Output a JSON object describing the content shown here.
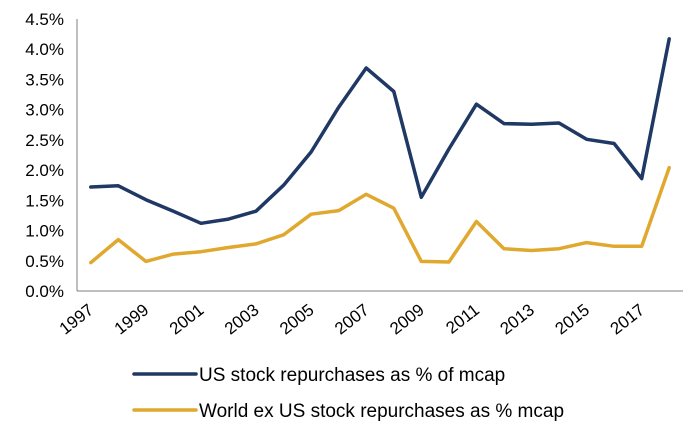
{
  "chart_data": {
    "type": "line",
    "x": [
      1997,
      1998,
      1999,
      2000,
      2001,
      2002,
      2003,
      2004,
      2005,
      2006,
      2007,
      2008,
      2009,
      2010,
      2011,
      2012,
      2013,
      2014,
      2015,
      2016,
      2017,
      2018
    ],
    "x_tick_labels": [
      "1997",
      "1999",
      "2001",
      "2003",
      "2005",
      "2007",
      "2009",
      "2011",
      "2013",
      "2015",
      "2017"
    ],
    "y_tick_labels": [
      "0.0%",
      "0.5%",
      "1.0%",
      "1.5%",
      "2.0%",
      "2.5%",
      "3.0%",
      "3.5%",
      "4.0%",
      "4.5%"
    ],
    "ylim": [
      0,
      4.5
    ],
    "y_unit": "%",
    "grid": false,
    "legend_position": "bottom",
    "series": [
      {
        "name": "US stock repurchases as % of mcap",
        "color": "#1f3864",
        "values": [
          1.72,
          1.74,
          1.51,
          1.32,
          1.12,
          1.19,
          1.32,
          1.75,
          2.3,
          3.04,
          3.69,
          3.3,
          1.55,
          2.35,
          3.09,
          2.77,
          2.76,
          2.78,
          2.51,
          2.44,
          1.86,
          4.17
        ]
      },
      {
        "name": "World ex US stock repurchases as % mcap",
        "color": "#e0a82e",
        "values": [
          0.47,
          0.85,
          0.49,
          0.61,
          0.65,
          0.72,
          0.78,
          0.93,
          1.27,
          1.33,
          1.6,
          1.37,
          0.49,
          0.48,
          1.15,
          0.7,
          0.67,
          0.7,
          0.8,
          0.74,
          0.74,
          2.04
        ]
      }
    ]
  }
}
